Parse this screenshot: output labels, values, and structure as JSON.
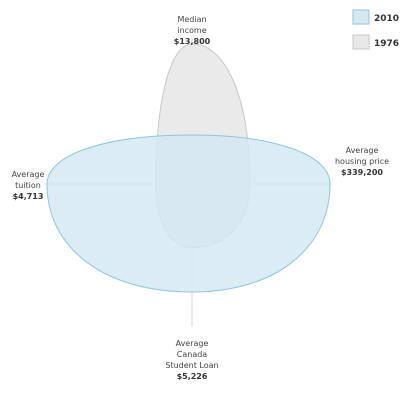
{
  "chart_data": {
    "type": "radar",
    "axes": [
      {
        "key": "top",
        "name": [
          "Median",
          "income"
        ],
        "value": "$13,800"
      },
      {
        "key": "right",
        "name": [
          "Average",
          "housing price"
        ],
        "value": "$339,200"
      },
      {
        "key": "bottom",
        "name": [
          "Average",
          "Canada",
          "Student Loan"
        ],
        "value": "$5,226"
      },
      {
        "key": "left",
        "name": [
          "Average",
          "tuition"
        ],
        "value": "$4,713"
      }
    ],
    "series": [
      {
        "name": "1976",
        "color": "#e8e8e8",
        "stroke": "#c8c8c8",
        "values": {
          "top": 1.0,
          "right": 0.42,
          "bottom": 0.53,
          "left": 0.25
        }
      },
      {
        "name": "2010",
        "color": "#d4e8f1",
        "stroke": "#8fc6dc",
        "values": {
          "top": 0.35,
          "right": 1.0,
          "bottom": 0.9,
          "left": 1.0
        }
      }
    ],
    "legend": {
      "position": "top-right",
      "items": [
        "2010",
        "1976"
      ]
    },
    "grid": true
  }
}
